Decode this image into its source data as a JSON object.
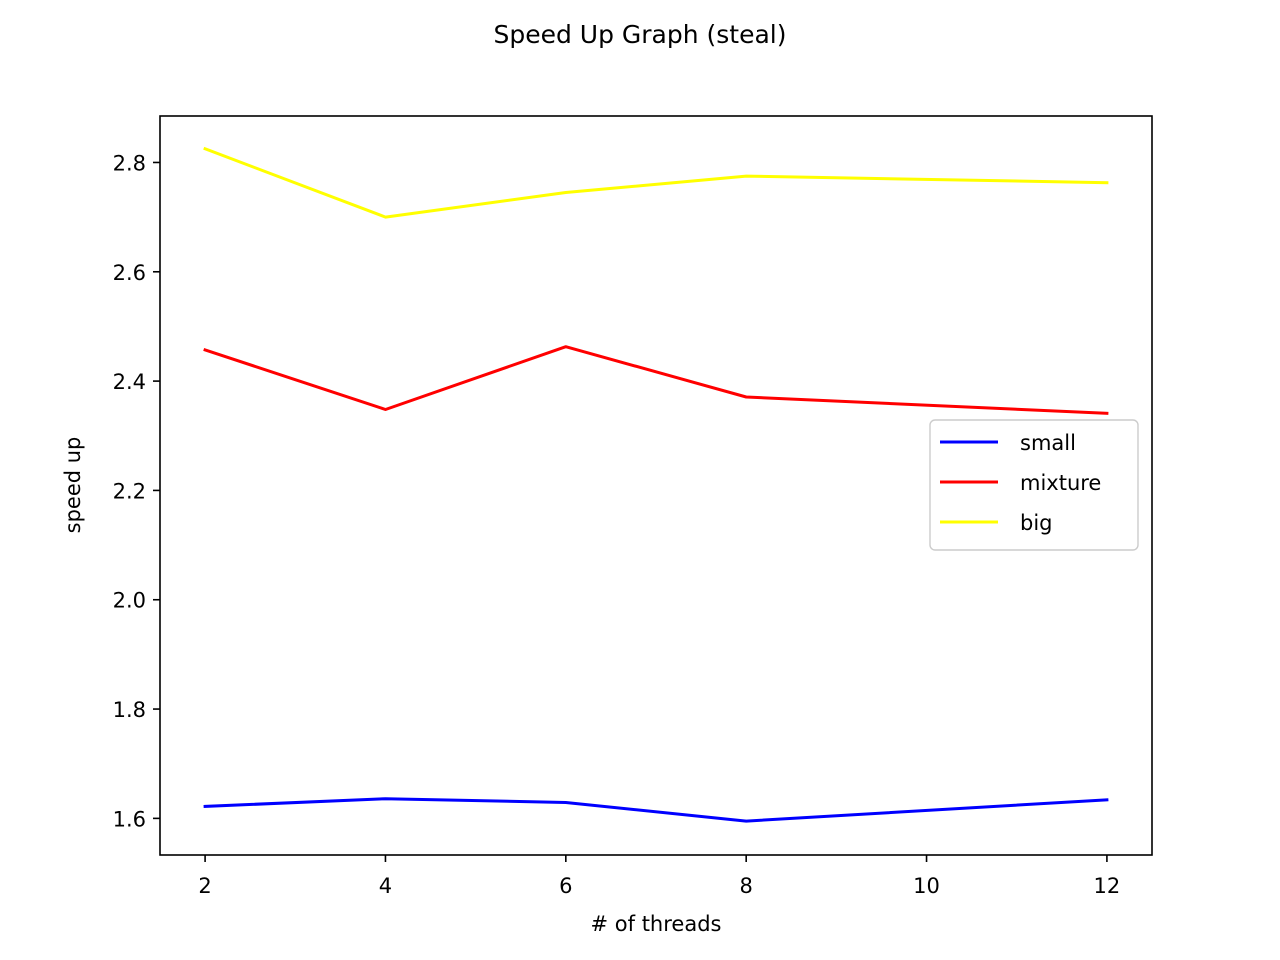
{
  "chart_data": {
    "type": "line",
    "title": "Speed Up Graph (steal)",
    "xlabel": "# of threads",
    "ylabel": "speed up",
    "x": [
      2,
      4,
      6,
      8,
      10,
      12
    ],
    "xlim": [
      1.5,
      12.5
    ],
    "ylim": [
      1.533,
      2.885
    ],
    "xticks": [
      2,
      4,
      6,
      8,
      10,
      12
    ],
    "yticks": [
      1.6,
      1.8,
      2.0,
      2.2,
      2.4,
      2.6,
      2.8
    ],
    "ytick_labels": [
      "1.6",
      "1.8",
      "2.0",
      "2.2",
      "2.4",
      "2.6",
      "2.8"
    ],
    "grid": false,
    "legend_position": "center-right",
    "series": [
      {
        "name": "small",
        "color": "#0000ff",
        "x": [
          2,
          4,
          6,
          8,
          12
        ],
        "values": [
          1.622,
          1.636,
          1.629,
          1.595,
          1.634
        ]
      },
      {
        "name": "mixture",
        "color": "#ff0000",
        "x": [
          2,
          4,
          6,
          8,
          12
        ],
        "values": [
          2.457,
          2.348,
          2.463,
          2.371,
          2.341
        ]
      },
      {
        "name": "big",
        "color": "#ffff00",
        "x": [
          2,
          4,
          6,
          8,
          12
        ],
        "values": [
          2.825,
          2.7,
          2.745,
          2.775,
          2.763
        ]
      }
    ]
  }
}
